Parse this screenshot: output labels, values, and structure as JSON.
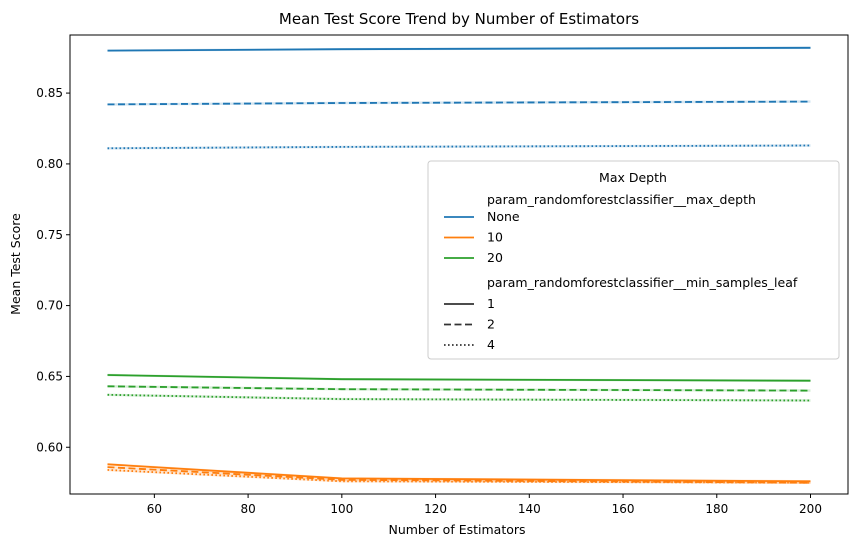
{
  "chart_data": {
    "type": "line",
    "title": "Mean Test Score Trend by Number of Estimators",
    "xlabel": "Number of Estimators",
    "ylabel": "Mean Test Score",
    "xlim": [
      42,
      208
    ],
    "ylim": [
      0.567,
      0.891
    ],
    "xticks": [
      60,
      80,
      100,
      120,
      140,
      160,
      180,
      200
    ],
    "yticks": [
      0.6,
      0.65,
      0.7,
      0.75,
      0.8,
      0.85
    ],
    "ytick_labels": [
      "0.60",
      "0.65",
      "0.70",
      "0.75",
      "0.80",
      "0.85"
    ],
    "grid": false,
    "legend": {
      "title": "Max Depth",
      "placement": "center-right",
      "hue_title": "param_randomforestclassifier__max_depth",
      "hue_entries": [
        {
          "label": "None",
          "color": "#1f77b4"
        },
        {
          "label": "10",
          "color": "#ff7f0e"
        },
        {
          "label": "20",
          "color": "#2ca02c"
        }
      ],
      "style_title": "param_randomforestclassifier__min_samples_leaf",
      "style_entries": [
        {
          "label": "1",
          "dash": "solid"
        },
        {
          "label": "2",
          "dash": "dashed"
        },
        {
          "label": "4",
          "dash": "dotted"
        }
      ]
    },
    "x": [
      50,
      100,
      200
    ],
    "series": [
      {
        "max_depth": "None",
        "min_samples_leaf": "1",
        "color": "#1f77b4",
        "dash": "solid",
        "values": [
          0.88,
          0.881,
          0.882
        ]
      },
      {
        "max_depth": "None",
        "min_samples_leaf": "2",
        "color": "#1f77b4",
        "dash": "dashed",
        "values": [
          0.842,
          0.843,
          0.844
        ]
      },
      {
        "max_depth": "None",
        "min_samples_leaf": "4",
        "color": "#1f77b4",
        "dash": "dotted",
        "values": [
          0.811,
          0.812,
          0.813
        ]
      },
      {
        "max_depth": "20",
        "min_samples_leaf": "1",
        "color": "#2ca02c",
        "dash": "solid",
        "values": [
          0.651,
          0.648,
          0.647
        ]
      },
      {
        "max_depth": "20",
        "min_samples_leaf": "2",
        "color": "#2ca02c",
        "dash": "dashed",
        "values": [
          0.643,
          0.641,
          0.64
        ]
      },
      {
        "max_depth": "20",
        "min_samples_leaf": "4",
        "color": "#2ca02c",
        "dash": "dotted",
        "values": [
          0.637,
          0.634,
          0.633
        ]
      },
      {
        "max_depth": "10",
        "min_samples_leaf": "1",
        "color": "#ff7f0e",
        "dash": "solid",
        "values": [
          0.588,
          0.578,
          0.576
        ]
      },
      {
        "max_depth": "10",
        "min_samples_leaf": "2",
        "color": "#ff7f0e",
        "dash": "dashed",
        "values": [
          0.586,
          0.577,
          0.575
        ]
      },
      {
        "max_depth": "10",
        "min_samples_leaf": "4",
        "color": "#ff7f0e",
        "dash": "dotted",
        "values": [
          0.584,
          0.576,
          0.575
        ]
      }
    ]
  }
}
